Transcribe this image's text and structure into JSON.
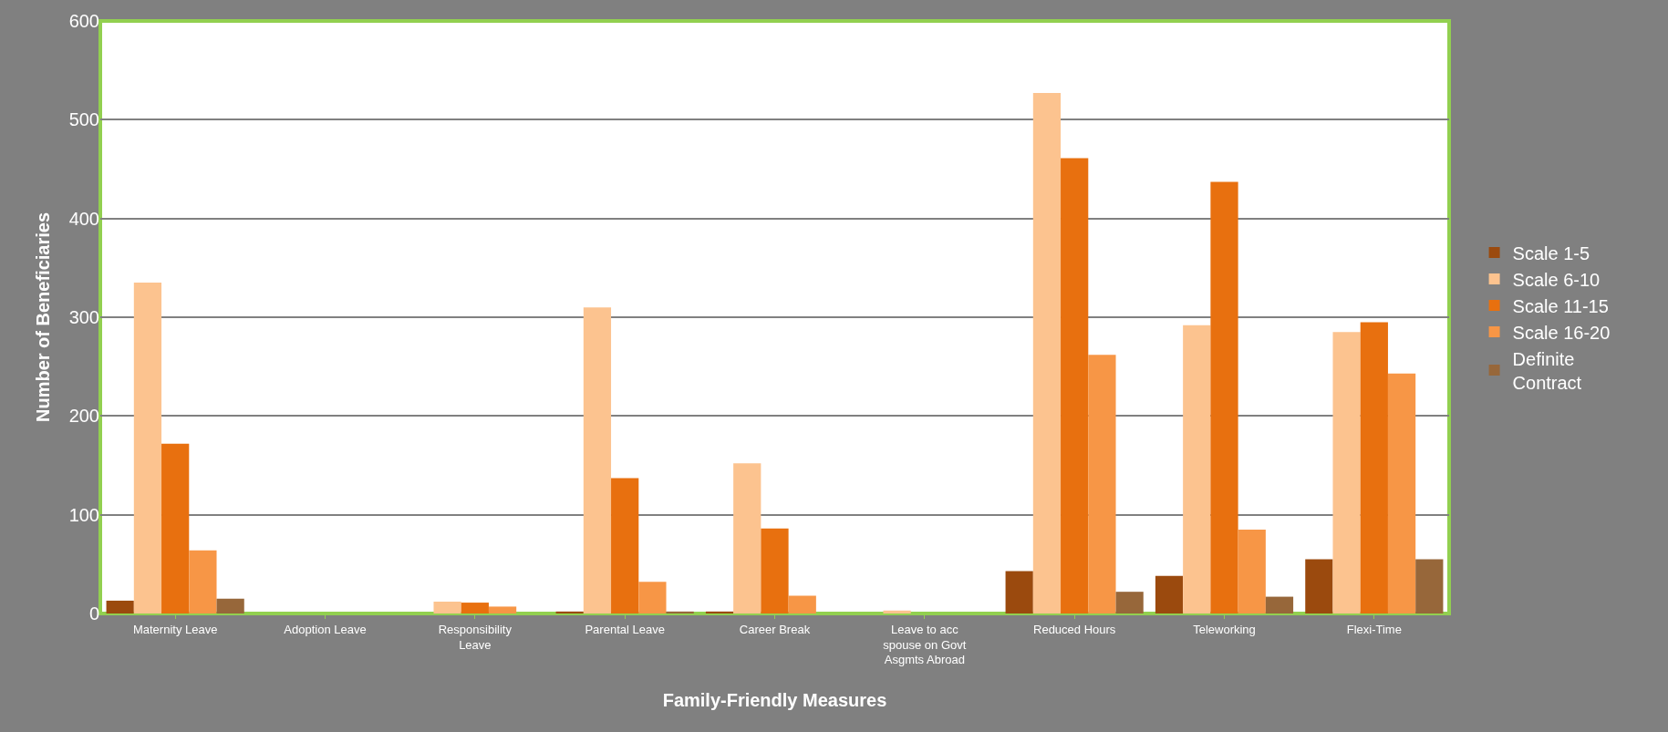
{
  "chart_data": {
    "type": "bar",
    "xlabel": "Family-Friendly Measures",
    "ylabel": "Number of Beneficiaries",
    "categories": [
      "Maternity Leave",
      "Adoption Leave",
      "Responsibility Leave",
      "Parental Leave",
      "Career Break",
      "Leave to acc spouse on Govt Asgmts Abroad",
      "Reduced Hours",
      "Teleworking",
      "Flexi-Time"
    ],
    "series": [
      {
        "name": "Scale 1-5",
        "color": "#9b4a0e",
        "values": [
          13,
          0,
          0,
          2,
          2,
          0,
          43,
          38,
          55
        ]
      },
      {
        "name": "Scale 6-10",
        "color": "#fcc38f",
        "values": [
          335,
          0,
          12,
          310,
          152,
          3,
          527,
          292,
          285
        ]
      },
      {
        "name": "Scale 11-15",
        "color": "#e8700f",
        "values": [
          172,
          0,
          11,
          137,
          86,
          0,
          461,
          437,
          295
        ]
      },
      {
        "name": "Scale 16-20",
        "color": "#f79646",
        "values": [
          64,
          0,
          7,
          32,
          18,
          0,
          262,
          85,
          243
        ]
      },
      {
        "name": "Definite Contract",
        "color": "#97673a",
        "values": [
          15,
          0,
          0,
          2,
          0,
          0,
          22,
          17,
          55
        ]
      }
    ],
    "ylim": [
      0,
      600
    ],
    "yticks": [
      0,
      100,
      200,
      300,
      400,
      500,
      600
    ],
    "grid": "y",
    "legend": "right"
  }
}
